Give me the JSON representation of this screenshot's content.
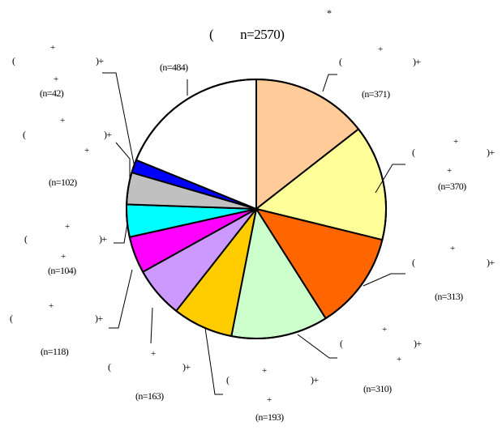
{
  "chart_data": {
    "type": "pie",
    "title": "(　　n=2570)",
    "title_mark": "*",
    "start_angle_deg": 0,
    "direction": "clockwise",
    "total": 2570,
    "slices": [
      {
        "value": 371,
        "label": "(n=371)",
        "color": "#FFCC99"
      },
      {
        "value": 370,
        "label": "(n=370)",
        "color": "#FFFF99"
      },
      {
        "value": 313,
        "label": "(n=313)",
        "color": "#FF6600"
      },
      {
        "value": 310,
        "label": "(n=310)",
        "color": "#CCFFCC"
      },
      {
        "value": 193,
        "label": "(n=193)",
        "color": "#FFCC00"
      },
      {
        "value": 163,
        "label": "(n=163)",
        "color": "#CC99FF"
      },
      {
        "value": 118,
        "label": "(n=118)",
        "color": "#FF00FF"
      },
      {
        "value": 104,
        "label": "(n=104)",
        "color": "#00FFFF"
      },
      {
        "value": 102,
        "label": "(n=102)",
        "color": "#C0C0C0"
      },
      {
        "value": 42,
        "label": "(n=42)",
        "color": "#0000FF"
      },
      {
        "value": 484,
        "label": "(n=484)",
        "color": "#FFFFFF"
      }
    ],
    "border_color": "#000000"
  },
  "label_text": {
    "open_paren": "(",
    "close_plus": ")+",
    "plus": "+"
  }
}
